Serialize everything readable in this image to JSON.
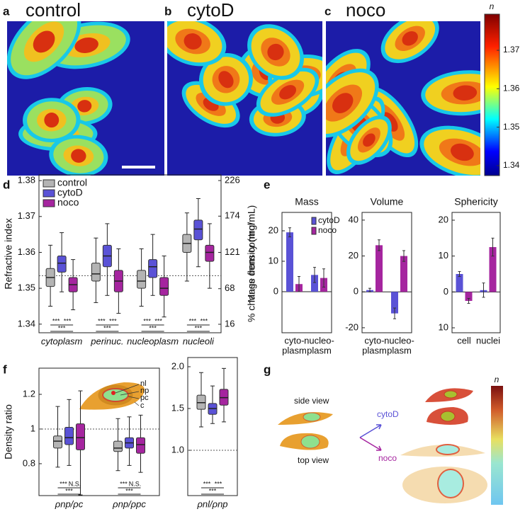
{
  "panel_labels": [
    "a",
    "b",
    "c",
    "d",
    "e",
    "f",
    "g"
  ],
  "images": [
    {
      "title": "control"
    },
    {
      "title": "cytoD"
    },
    {
      "title": "noco"
    }
  ],
  "colorbar": {
    "label": "n",
    "lim": [
      1.3374,
      1.3794
    ],
    "ticks": [
      1.34,
      1.35,
      1.36,
      1.37
    ]
  },
  "chart_data": [
    {
      "type": "box",
      "y_label": "Refractive index",
      "y2_label": "Mass density (mg/mL)",
      "categories": [
        "cytoplasm",
        "perinuc.",
        "nucleoplasm",
        "nucleoli"
      ],
      "ylim": [
        1.3376,
        1.3816
      ],
      "yticks": [
        1.34,
        1.35,
        1.36,
        1.37,
        1.38
      ],
      "y2lim": [
        3.6,
        234.3
      ],
      "y2ticks": [
        16,
        68,
        121,
        174,
        226
      ],
      "reference_line": 1.3535,
      "legend": "upper left",
      "series": [
        {
          "name": "control",
          "color": "#b4b4b4",
          "whislo": [
            1.345,
            1.346,
            1.345,
            1.352
          ],
          "q1": [
            1.3505,
            1.352,
            1.35,
            1.36
          ],
          "med": [
            1.353,
            1.354,
            1.352,
            1.3625
          ],
          "q3": [
            1.3555,
            1.357,
            1.355,
            1.365
          ],
          "whishi": [
            1.362,
            1.364,
            1.361,
            1.371
          ]
        },
        {
          "name": "cytoD",
          "color": "#5a52d6",
          "whislo": [
            1.349,
            1.348,
            1.348,
            1.356
          ],
          "q1": [
            1.3545,
            1.356,
            1.353,
            1.3635
          ],
          "med": [
            1.357,
            1.359,
            1.356,
            1.3665
          ],
          "q3": [
            1.359,
            1.362,
            1.358,
            1.369
          ],
          "whishi": [
            1.3655,
            1.368,
            1.365,
            1.375
          ]
        },
        {
          "name": "noco",
          "color": "#a5259f",
          "whislo": [
            1.344,
            1.343,
            1.342,
            1.35
          ],
          "q1": [
            1.349,
            1.349,
            1.348,
            1.3575
          ],
          "med": [
            1.351,
            1.352,
            1.35,
            1.36
          ],
          "q3": [
            1.353,
            1.355,
            1.353,
            1.362
          ],
          "whishi": [
            1.358,
            1.361,
            1.359,
            1.368
          ]
        }
      ],
      "significance": [
        [
          "***",
          "***",
          "***"
        ],
        [
          "***",
          "***",
          "***"
        ],
        [
          "***",
          "***",
          "***"
        ],
        [
          "***",
          "***",
          "***"
        ]
      ]
    },
    {
      "type": "bar",
      "title": "Mass",
      "y_label": "% change from control",
      "categories": [
        [
          "cyto-",
          "plasm"
        ],
        [
          "nucleo-",
          "plasm"
        ]
      ],
      "ylim": [
        -13.5,
        26.05
      ],
      "yticks": [
        0,
        10,
        20
      ],
      "legend": "upper right",
      "series": [
        {
          "name": "cytoD",
          "color": "#5a52d6",
          "values": [
            19.5,
            5.5
          ],
          "errors": [
            1.5,
            2.5
          ]
        },
        {
          "name": "noco",
          "color": "#a5259f",
          "values": [
            2.5,
            4.5
          ],
          "errors": [
            2.5,
            3
          ]
        }
      ]
    },
    {
      "type": "bar",
      "title": "Volume",
      "categories": [
        [
          "cyto-",
          "plasm"
        ],
        [
          "nucleo-",
          "plasm"
        ]
      ],
      "ylim": [
        -22.8,
        44.3
      ],
      "yticks": [
        -20,
        0,
        20,
        40
      ],
      "series": [
        {
          "name": "cytoD",
          "color": "#5a52d6",
          "values": [
            1,
            -12
          ],
          "errors": [
            1,
            3
          ]
        },
        {
          "name": "noco",
          "color": "#a5259f",
          "values": [
            26,
            20
          ],
          "errors": [
            3,
            3
          ]
        }
      ]
    },
    {
      "type": "bar",
      "title": "Sphericity",
      "categories": [
        [
          "cell"
        ],
        [
          "nuclei"
        ]
      ],
      "ylim": [
        -11.38,
        22.17
      ],
      "yticks": [
        {
          "value": -10,
          "label": "10"
        },
        0,
        10,
        20
      ],
      "series": [
        {
          "name": "cytoD",
          "color": "#5a52d6",
          "values": [
            5,
            0.5
          ],
          "errors": [
            0.7,
            2
          ]
        },
        {
          "name": "noco",
          "color": "#a5259f",
          "values": [
            -2.5,
            12.5
          ],
          "errors": [
            0.7,
            2.5
          ]
        }
      ]
    },
    {
      "type": "box",
      "y_label": "Density ratio",
      "categories": [
        "ρnp/ρc",
        "ρnp/ρpc"
      ],
      "ylim": [
        0.616,
        1.351
      ],
      "yticks": [
        0.8,
        1.0,
        1.2
      ],
      "reference_line": 1.0,
      "series": [
        {
          "name": "control",
          "color": "#b4b4b4",
          "whislo": [
            0.78,
            0.76
          ],
          "q1": [
            0.89,
            0.87
          ],
          "med": [
            0.93,
            0.89
          ],
          "q3": [
            0.96,
            0.93
          ],
          "whishi": [
            1.13,
            1.06
          ]
        },
        {
          "name": "cytoD",
          "color": "#5a52d6",
          "whislo": [
            0.79,
            0.79
          ],
          "q1": [
            0.91,
            0.89
          ],
          "med": [
            0.95,
            0.92
          ],
          "q3": [
            1.01,
            0.95
          ],
          "whishi": [
            1.17,
            1.07
          ]
        },
        {
          "name": "noco",
          "color": "#a5259f",
          "whislo": [
            0.62,
            0.75
          ],
          "q1": [
            0.88,
            0.86
          ],
          "med": [
            0.95,
            0.91
          ],
          "q3": [
            1.03,
            0.95
          ],
          "whishi": [
            1.22,
            1.08
          ]
        }
      ],
      "significance": [
        [
          "***",
          "N.S.",
          "***"
        ],
        [
          "***",
          "N.S.",
          "***"
        ]
      ]
    },
    {
      "type": "box",
      "categories": [
        "ρnl/ρnp"
      ],
      "ylim": [
        0.458,
        2.11
      ],
      "yticks": [
        {
          "value": 1.0,
          "label": "1.0"
        },
        1.5,
        {
          "value": 2.0,
          "label": "2.0"
        }
      ],
      "reference_line": 1.0,
      "series": [
        {
          "name": "control",
          "color": "#b4b4b4",
          "whislo": [
            1.28
          ],
          "q1": [
            1.49
          ],
          "med": [
            1.57
          ],
          "q3": [
            1.66
          ],
          "whishi": [
            1.93
          ]
        },
        {
          "name": "cytoD",
          "color": "#5a52d6",
          "whislo": [
            1.32
          ],
          "q1": [
            1.43
          ],
          "med": [
            1.5
          ],
          "q3": [
            1.56
          ],
          "whishi": [
            1.77
          ]
        },
        {
          "name": "noco",
          "color": "#a5259f",
          "whislo": [
            1.34
          ],
          "q1": [
            1.54
          ],
          "med": [
            1.63
          ],
          "q3": [
            1.73
          ],
          "whishi": [
            1.98
          ]
        }
      ],
      "significance": [
        [
          "***",
          "***",
          "***"
        ]
      ]
    }
  ],
  "inset_labels": [
    "nl",
    "np",
    "pc",
    "c"
  ],
  "schematic": {
    "side_view": "side view",
    "top_view": "top view",
    "arrow_labels": [
      "cytoD",
      "noco"
    ],
    "colorbar_label": "n"
  }
}
